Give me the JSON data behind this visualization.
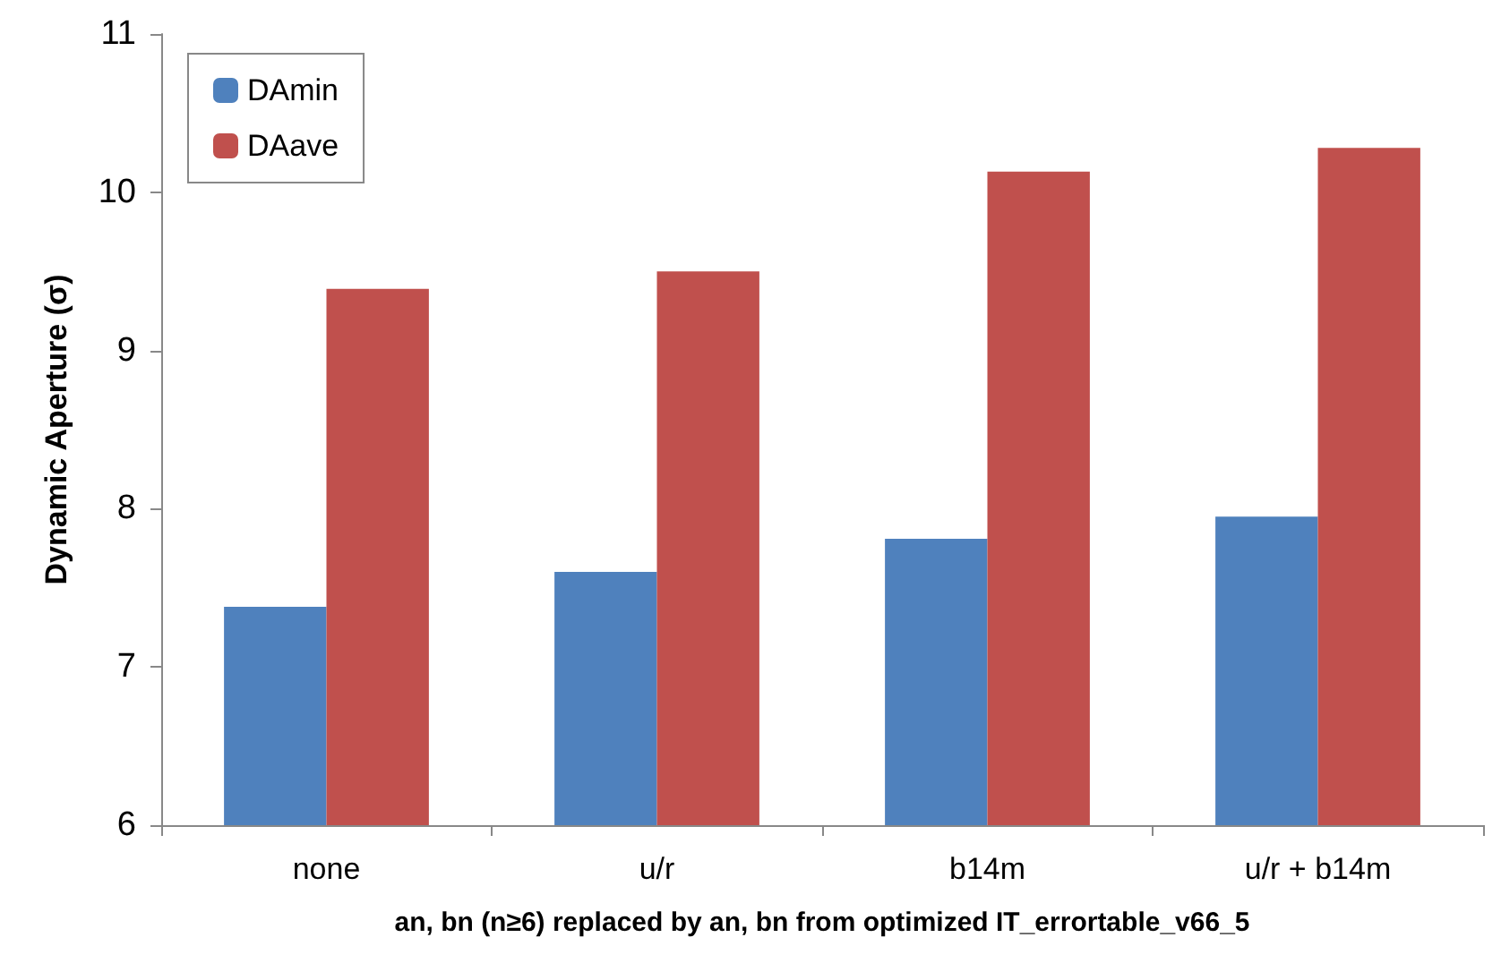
{
  "chart_data": {
    "type": "bar",
    "xlabel": "an, bn (n≥6) replaced by an, bn from optimized IT_errortable_v66_5",
    "ylabel": "Dynamic Aperture (σ)",
    "categories": [
      "none",
      "u/r",
      "b14m",
      "u/r + b14m"
    ],
    "series": [
      {
        "name": "DAmin",
        "color": "#4f81bd",
        "values": [
          7.38,
          7.6,
          7.81,
          7.95
        ]
      },
      {
        "name": "DAave",
        "color": "#c0504d",
        "values": [
          9.39,
          9.5,
          10.13,
          10.28
        ]
      }
    ],
    "ylim": [
      6,
      11
    ],
    "yticks": [
      6,
      7,
      8,
      9,
      10,
      11
    ],
    "grid": false,
    "legend": "top left"
  }
}
